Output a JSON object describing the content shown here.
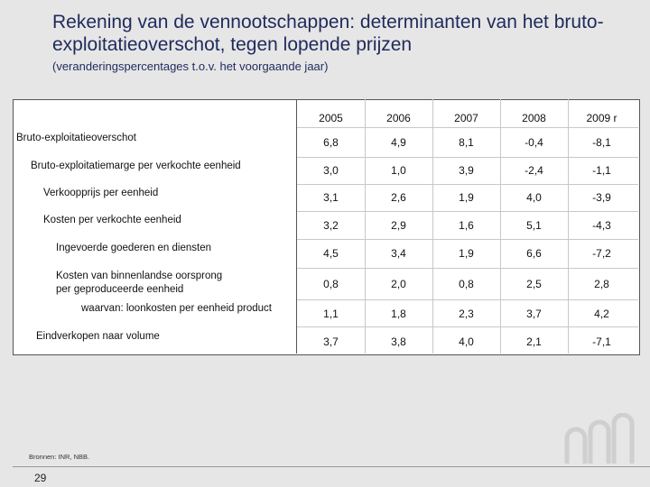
{
  "slide": {
    "title": "Rekening van de vennootschappen: determinanten van het bruto-exploitatieoverschot, tegen lopende prijzen",
    "subtitle": "(veranderingspercentages t.o.v. het voorgaande jaar)",
    "source": "Bronnen: INR, NBB.",
    "page_number": "29"
  },
  "table": {
    "columns": [
      "2005",
      "2006",
      "2007",
      "2008",
      "2009 r"
    ],
    "rows": [
      {
        "label": "Bruto-exploitatieoverschot",
        "label2": "",
        "values": [
          "6,8",
          "4,9",
          "8,1",
          "-0,4",
          "-8,1"
        ]
      },
      {
        "label": "Bruto-exploitatiemarge per verkochte eenheid",
        "label2": "",
        "values": [
          "3,0",
          "1,0",
          "3,9",
          "-2,4",
          "-1,1"
        ]
      },
      {
        "label": "Verkoopprijs per eenheid",
        "label2": "",
        "values": [
          "3,1",
          "2,6",
          "1,9",
          "4,0",
          "-3,9"
        ]
      },
      {
        "label": "Kosten per verkochte eenheid",
        "label2": "",
        "values": [
          "3,2",
          "2,9",
          "1,6",
          "5,1",
          "-4,3"
        ]
      },
      {
        "label": "Ingevoerde goederen en diensten",
        "label2": "",
        "values": [
          "4,5",
          "3,4",
          "1,9",
          "6,6",
          "-7,2"
        ]
      },
      {
        "label": "Kosten van binnenlandse oorsprong",
        "label2": "per geproduceerde eenheid",
        "values": [
          "0,8",
          "2,0",
          "0,8",
          "2,5",
          "2,8"
        ]
      },
      {
        "label": "waarvan: loonkosten per eenheid product",
        "label2": "",
        "values": [
          "1,1",
          "1,8",
          "2,3",
          "3,7",
          "4,2"
        ]
      },
      {
        "label": "Eindverkopen naar volume",
        "label2": "",
        "values": [
          "3,7",
          "3,8",
          "4,0",
          "2,1",
          "-7,1"
        ]
      }
    ]
  },
  "logo": {
    "icon": "nbb-logo-icon",
    "color": "#c8c8c8"
  }
}
